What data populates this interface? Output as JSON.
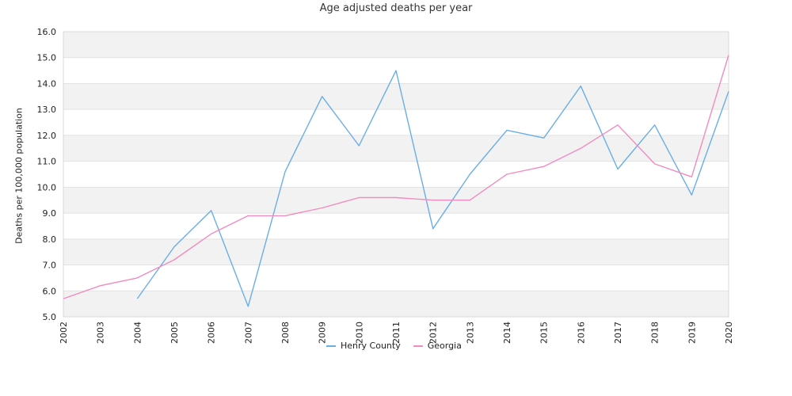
{
  "chart_data": {
    "type": "line",
    "title": "Age adjusted deaths per year",
    "ylabel": "Deaths per 100,000 population",
    "xlabel": "",
    "ylim": [
      5.0,
      16.0
    ],
    "yticks": [
      "5.0",
      "6.0",
      "7.0",
      "8.0",
      "9.0",
      "10.0",
      "11.0",
      "12.0",
      "13.0",
      "14.0",
      "15.0",
      "16.0"
    ],
    "categories": [
      "2002",
      "2003",
      "2004",
      "2005",
      "2006",
      "2007",
      "2008",
      "2009",
      "2010",
      "2011",
      "2012",
      "2013",
      "2014",
      "2015",
      "2016",
      "2017",
      "2018",
      "2019",
      "2020"
    ],
    "series": [
      {
        "name": "Henry County",
        "color": "#6aaee8",
        "values": [
          null,
          null,
          5.7,
          7.7,
          9.1,
          5.4,
          10.6,
          13.5,
          11.6,
          14.5,
          8.4,
          10.5,
          12.2,
          11.9,
          13.9,
          10.7,
          12.4,
          9.7,
          13.7
        ]
      },
      {
        "name": "Georgia",
        "color": "#f08cbf",
        "values": [
          5.7,
          6.2,
          6.5,
          7.2,
          8.2,
          8.9,
          8.9,
          9.2,
          9.6,
          9.6,
          9.5,
          9.5,
          10.5,
          10.8,
          11.5,
          12.4,
          10.9,
          10.4,
          15.1
        ]
      }
    ],
    "grid": true,
    "legend_position": "bottom-center",
    "band_color": "#f2f2f2"
  }
}
